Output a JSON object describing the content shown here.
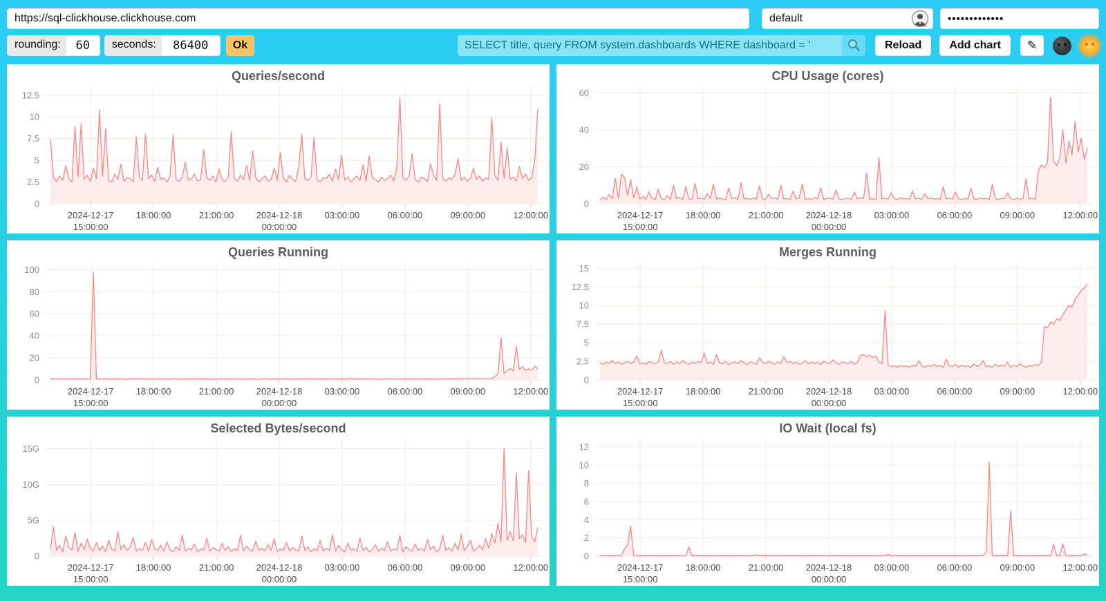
{
  "toolbar": {
    "url_value": "https://sql-clickhouse.clickhouse.com",
    "user_value": "default",
    "password_masked": "•••••••••••••",
    "rounding_label": "rounding:",
    "rounding_value": "60",
    "seconds_label": "seconds:",
    "seconds_value": "86400",
    "ok_label": "Ok",
    "query_value": "SELECT title, query FROM system.dashboards WHERE dashboard = '",
    "reload_label": "Reload",
    "add_chart_label": "Add chart",
    "edit_icon_glyph": "✎"
  },
  "theme": {
    "background_top": "#2BCDF5",
    "background_bottom": "#21D4C5",
    "accent_orange": "#F8C367",
    "line_color": "#F88888",
    "fill_color": "#FCECEC",
    "grid_color": "#ECEAE0",
    "ytick_color": "#8F8F8F",
    "xtick_color": "#4a4a4a",
    "title_color": "#5d5d5d"
  },
  "x_ticks": [
    {
      "frac": 0.0825,
      "line1": "2024-12-17",
      "line2": "15:00:00"
    },
    {
      "frac": 0.2115,
      "line1": "18:00:00"
    },
    {
      "frac": 0.3405,
      "line1": "21:00:00"
    },
    {
      "frac": 0.4695,
      "line1": "2024-12-18",
      "line2": "00:00:00"
    },
    {
      "frac": 0.5985,
      "line1": "03:00:00"
    },
    {
      "frac": 0.7275,
      "line1": "06:00:00"
    },
    {
      "frac": 0.8565,
      "line1": "09:00:00"
    },
    {
      "frac": 0.9855,
      "line1": "12:00:00"
    }
  ],
  "chart_data": [
    {
      "type": "area",
      "title": "Queries/second",
      "y_max": 13.2,
      "y_ticks": [
        {
          "value": 0,
          "label": "0"
        },
        {
          "value": 2.5,
          "label": "2.5"
        },
        {
          "value": 5,
          "label": "5"
        },
        {
          "value": 7.5,
          "label": "7.5"
        },
        {
          "value": 10,
          "label": "10"
        },
        {
          "value": 12.5,
          "label": "12.5"
        }
      ],
      "values": [
        7.4,
        3.0,
        2.6,
        3.2,
        2.7,
        4.4,
        2.9,
        2.5,
        8.9,
        3.1,
        9.2,
        2.8,
        3.3,
        2.6,
        4.1,
        2.9,
        10.8,
        3.2,
        8.6,
        2.7,
        2.5,
        3.4,
        2.8,
        4.6,
        2.6,
        3.0,
        2.9,
        2.5,
        7.7,
        3.1,
        2.7,
        8.0,
        2.9,
        3.3,
        2.6,
        4.2,
        2.8,
        3.0,
        2.5,
        3.2,
        7.9,
        2.8,
        2.6,
        3.1,
        4.8,
        2.7,
        2.9,
        3.4,
        2.6,
        2.8,
        6.2,
        3.0,
        2.7,
        3.2,
        2.5,
        4.0,
        2.8,
        2.6,
        3.1,
        8.3,
        2.9,
        2.6,
        3.3,
        2.8,
        4.4,
        2.7,
        6.1,
        3.0,
        2.5,
        2.9,
        3.2,
        2.6,
        2.8,
        4.1,
        2.7,
        5.9,
        3.0,
        2.5,
        3.3,
        2.8,
        2.6,
        4.3,
        8.0,
        2.9,
        2.7,
        3.1,
        7.6,
        2.8,
        2.5,
        3.0,
        2.9,
        3.4,
        2.6,
        4.0,
        2.8,
        5.6,
        2.7,
        3.1,
        2.5,
        2.9,
        3.2,
        2.7,
        4.5,
        2.6,
        5.5,
        3.0,
        2.8,
        2.5,
        3.1,
        2.7,
        2.9,
        3.3,
        2.6,
        4.2,
        12.2,
        3.0,
        2.7,
        3.2,
        5.8,
        2.8,
        2.5,
        3.1,
        2.9,
        2.6,
        4.6,
        3.3,
        2.7,
        11.5,
        2.9,
        2.6,
        3.0,
        2.8,
        3.4,
        5.2,
        2.7,
        3.1,
        2.6,
        2.9,
        4.1,
        2.8,
        3.2,
        2.6,
        3.0,
        2.8,
        9.9,
        3.3,
        2.7,
        7.1,
        2.9,
        6.4,
        2.8,
        3.1,
        2.6,
        4.3,
        2.9,
        3.4,
        2.7,
        3.0,
        5.0,
        10.9
      ]
    },
    {
      "type": "area",
      "title": "CPU Usage (cores)",
      "y_max": 62,
      "y_ticks": [
        {
          "value": 0,
          "label": "0"
        },
        {
          "value": 20,
          "label": "20"
        },
        {
          "value": 40,
          "label": "40"
        },
        {
          "value": 60,
          "label": "60"
        }
      ],
      "values": [
        2.0,
        3.5,
        2.2,
        5.0,
        2.8,
        13.8,
        3.0,
        16.0,
        14.2,
        4.5,
        13.0,
        3.2,
        9.0,
        2.6,
        4.0,
        2.4,
        6.5,
        3.0,
        2.2,
        8.0,
        2.8,
        2.2,
        4.5,
        2.5,
        10.2,
        2.8,
        3.5,
        2.2,
        9.5,
        2.6,
        2.3,
        11.0,
        2.7,
        3.2,
        2.4,
        5.5,
        2.8,
        10.5,
        2.5,
        3.0,
        2.6,
        2.2,
        8.5,
        2.8,
        3.4,
        2.3,
        11.5,
        2.6,
        2.9,
        2.4,
        3.1,
        2.5,
        9.8,
        2.7,
        2.3,
        5.2,
        2.8,
        3.3,
        2.4,
        10.0,
        2.6,
        2.9,
        2.3,
        6.8,
        2.7,
        3.1,
        10.8,
        2.5,
        2.8,
        2.3,
        3.4,
        2.6,
        8.8,
        2.4,
        2.9,
        3.2,
        2.5,
        7.5,
        2.7,
        2.3,
        2.8,
        3.0,
        2.4,
        6.2,
        2.6,
        3.3,
        2.9,
        16.5,
        2.5,
        2.8,
        2.4,
        25.0,
        2.7,
        3.1,
        2.5,
        6.0,
        2.8,
        2.3,
        3.2,
        2.6,
        2.9,
        2.4,
        7.0,
        2.6,
        3.0,
        2.3,
        5.5,
        2.7,
        3.2,
        2.5,
        2.8,
        2.3,
        9.2,
        2.6,
        3.1,
        2.4,
        6.5,
        2.8,
        2.2,
        3.0,
        2.5,
        8.5,
        2.7,
        2.3,
        3.2,
        2.6,
        2.9,
        2.4,
        10.5,
        2.7,
        2.4,
        3.0,
        2.6,
        6.0,
        2.8,
        2.3,
        3.1,
        2.5,
        2.7,
        13.5,
        2.6,
        3.0,
        2.4,
        18.0,
        21.0,
        19.5,
        22.5,
        57.5,
        23.0,
        20.5,
        25.0,
        40.0,
        22.0,
        34.0,
        26.5,
        44.5,
        28.0,
        35.5,
        24.0,
        30.0
      ]
    },
    {
      "type": "area",
      "title": "Queries Running",
      "y_max": 104,
      "y_ticks": [
        {
          "value": 0,
          "label": "0"
        },
        {
          "value": 20,
          "label": "20"
        },
        {
          "value": 40,
          "label": "40"
        },
        {
          "value": 60,
          "label": "60"
        },
        {
          "value": 80,
          "label": "80"
        },
        {
          "value": 100,
          "label": "100"
        }
      ],
      "values": [
        0.8,
        1.1,
        0.9,
        1.2,
        0.7,
        1.0,
        1.4,
        0.8,
        1.1,
        0.9,
        1.2,
        0.8,
        1.0,
        0.7,
        98.0,
        0.9,
        1.1,
        0.8,
        1.2,
        0.9,
        0.7,
        1.0,
        0.8,
        1.1,
        0.9,
        0.7,
        1.2,
        0.8,
        1.0,
        0.9,
        1.1,
        0.7,
        0.9,
        1.2,
        0.8,
        1.0,
        0.7,
        1.1,
        0.9,
        0.8,
        1.0,
        1.3,
        0.8,
        0.9,
        1.1,
        0.7,
        1.0,
        0.8,
        1.2,
        0.9,
        0.8,
        1.1,
        0.7,
        1.0,
        0.9,
        1.2,
        0.8,
        1.0,
        0.7,
        1.1,
        0.9,
        0.8,
        1.2,
        0.7,
        1.0,
        0.9,
        1.1,
        0.8,
        0.7,
        1.0,
        1.2,
        0.9,
        0.8,
        1.1,
        0.7,
        1.0,
        0.9,
        1.3,
        0.8,
        1.0,
        0.7,
        1.1,
        0.9,
        0.8,
        1.2,
        0.7,
        1.0,
        0.9,
        1.1,
        0.8,
        1.0,
        0.7,
        1.2,
        0.9,
        0.8,
        1.1,
        0.7,
        1.0,
        1.3,
        0.9,
        0.8,
        1.0,
        0.7,
        1.1,
        0.9,
        1.2,
        0.8,
        0.7,
        1.0,
        0.9,
        1.1,
        0.8,
        1.2,
        0.7,
        0.9,
        1.0,
        0.8,
        1.1,
        0.7,
        1.2,
        0.9,
        1.0,
        0.8,
        1.1,
        0.7,
        0.9,
        1.2,
        0.8,
        1.0,
        1.4,
        0.9,
        1.1,
        0.8,
        1.0,
        1.2,
        0.9,
        1.3,
        1.0,
        1.1,
        1.5,
        1.2,
        1.0,
        1.3,
        1.1,
        1.4,
        3.0,
        5.5,
        38.0,
        6.0,
        8.5,
        10.5,
        8.0,
        30.5,
        9.5,
        12.0,
        8.5,
        10.0,
        9.0,
        12.5,
        10.0
      ]
    },
    {
      "type": "area",
      "title": "Merges Running",
      "y_max": 15.4,
      "y_ticks": [
        {
          "value": 0,
          "label": "0"
        },
        {
          "value": 2.5,
          "label": "2.5"
        },
        {
          "value": 5,
          "label": "5"
        },
        {
          "value": 7.5,
          "label": "7.5"
        },
        {
          "value": 10,
          "label": "10"
        },
        {
          "value": 12.5,
          "label": "12.5"
        },
        {
          "value": 15,
          "label": "15"
        }
      ],
      "values": [
        2.3,
        2.1,
        2.4,
        2.2,
        2.6,
        2.2,
        2.4,
        2.1,
        2.3,
        2.5,
        2.2,
        2.4,
        3.2,
        2.2,
        2.3,
        2.1,
        2.5,
        2.3,
        2.2,
        2.4,
        4.0,
        2.3,
        2.2,
        2.5,
        2.1,
        2.4,
        2.2,
        2.6,
        2.3,
        2.1,
        2.4,
        2.2,
        2.5,
        2.3,
        3.6,
        2.2,
        2.4,
        2.1,
        3.4,
        2.3,
        2.2,
        2.5,
        2.1,
        2.3,
        2.4,
        2.2,
        2.6,
        2.3,
        2.1,
        2.4,
        2.3,
        2.1,
        3.0,
        2.4,
        2.2,
        2.5,
        2.3,
        2.1,
        2.4,
        2.2,
        3.1,
        2.3,
        2.5,
        2.2,
        2.4,
        2.1,
        2.3,
        2.6,
        2.2,
        2.4,
        2.2,
        2.4,
        2.1,
        2.5,
        2.3,
        2.2,
        2.7,
        2.3,
        2.1,
        2.4,
        2.3,
        2.2,
        2.5,
        2.1,
        2.4,
        3.3,
        3.4,
        3.1,
        3.3,
        3.0,
        3.2,
        2.4,
        2.2,
        9.3,
        2.0,
        1.8,
        1.9,
        1.7,
        2.0,
        1.8,
        1.9,
        1.7,
        2.0,
        1.8,
        2.6,
        1.9,
        1.7,
        2.0,
        1.8,
        2.1,
        1.8,
        2.0,
        1.7,
        2.8,
        1.9,
        1.8,
        2.1,
        1.7,
        2.0,
        1.8,
        1.9,
        1.7,
        2.2,
        1.8,
        2.0,
        2.6,
        1.8,
        1.9,
        1.7,
        2.1,
        1.8,
        2.0,
        1.9,
        2.4,
        1.7,
        2.0,
        1.8,
        2.2,
        1.9,
        1.7,
        2.0,
        1.8,
        2.1,
        1.9,
        2.4,
        7.2,
        7.0,
        7.8,
        7.5,
        8.2,
        8.0,
        8.8,
        9.4,
        10.0,
        9.8,
        10.8,
        11.4,
        12.0,
        12.4,
        12.8
      ]
    },
    {
      "type": "area",
      "title": "Selected Bytes/second",
      "y_max": 16,
      "y_ticks": [
        {
          "value": 0,
          "label": "0"
        },
        {
          "value": 5,
          "label": "5G"
        },
        {
          "value": 10,
          "label": "10G"
        },
        {
          "value": 15,
          "label": "15G"
        }
      ],
      "values": [
        1.0,
        4.1,
        0.8,
        1.5,
        0.6,
        2.8,
        1.2,
        0.9,
        3.3,
        0.7,
        1.8,
        0.9,
        2.4,
        1.1,
        0.7,
        1.9,
        0.8,
        1.4,
        0.6,
        2.2,
        1.0,
        0.7,
        3.4,
        0.9,
        1.6,
        0.8,
        1.2,
        2.6,
        0.7,
        1.1,
        0.8,
        1.9,
        0.7,
        2.3,
        1.0,
        0.8,
        1.5,
        0.7,
        2.0,
        0.9,
        0.6,
        1.3,
        0.8,
        2.9,
        0.7,
        1.1,
        0.9,
        1.7,
        0.6,
        1.0,
        0.8,
        2.5,
        0.7,
        1.2,
        0.9,
        0.7,
        1.8,
        0.8,
        1.3,
        0.6,
        1.0,
        0.8,
        2.9,
        0.7,
        1.4,
        0.9,
        0.7,
        2.1,
        0.8,
        1.1,
        0.7,
        1.6,
        0.8,
        2.4,
        0.6,
        1.0,
        0.8,
        1.9,
        0.7,
        1.2,
        0.9,
        0.7,
        2.8,
        0.8,
        1.3,
        0.6,
        1.0,
        0.8,
        2.2,
        0.7,
        1.1,
        0.8,
        3.0,
        0.7,
        1.5,
        0.9,
        0.6,
        1.8,
        0.8,
        1.0,
        0.7,
        2.5,
        0.8,
        1.2,
        0.6,
        0.9,
        1.6,
        0.7,
        1.1,
        0.8,
        2.0,
        0.7,
        1.0,
        0.8,
        2.9,
        0.6,
        1.3,
        0.9,
        0.7,
        1.7,
        0.8,
        1.1,
        0.7,
        2.3,
        0.9,
        1.4,
        0.6,
        1.0,
        2.9,
        0.8,
        1.2,
        0.7,
        1.8,
        0.9,
        3.0,
        0.8,
        1.3,
        2.2,
        0.7,
        1.0,
        1.5,
        0.9,
        2.4,
        1.1,
        3.1,
        1.8,
        4.6,
        2.0,
        15.0,
        2.2,
        3.4,
        2.1,
        11.6,
        2.4,
        3.0,
        1.9,
        11.9,
        2.6,
        2.0,
        4.0
      ]
    },
    {
      "type": "area",
      "title": "IO Wait (local fs)",
      "y_max": 12.6,
      "y_ticks": [
        {
          "value": 0,
          "label": "0"
        },
        {
          "value": 2,
          "label": "2"
        },
        {
          "value": 4,
          "label": "4"
        },
        {
          "value": 6,
          "label": "6"
        },
        {
          "value": 8,
          "label": "8"
        },
        {
          "value": 10,
          "label": "10"
        },
        {
          "value": 12,
          "label": "12"
        }
      ],
      "values": [
        0.05,
        0.04,
        0.06,
        0.04,
        0.05,
        0.04,
        0.06,
        0.05,
        0.8,
        1.2,
        3.3,
        0.06,
        0.05,
        0.04,
        0.06,
        0.05,
        0.04,
        0.05,
        0.06,
        0.04,
        0.05,
        0.04,
        0.06,
        0.05,
        0.04,
        0.05,
        0.06,
        0.04,
        0.05,
        1.0,
        0.04,
        0.05,
        0.06,
        0.04,
        0.05,
        0.04,
        0.06,
        0.05,
        0.04,
        0.05,
        0.06,
        0.04,
        0.05,
        0.04,
        0.06,
        0.05,
        0.04,
        0.06,
        0.05,
        0.04,
        0.05,
        0.15,
        0.04,
        0.05,
        0.06,
        0.04,
        0.05,
        0.04,
        0.06,
        0.05,
        0.04,
        0.05,
        0.06,
        0.04,
        0.05,
        0.06,
        0.04,
        0.05,
        0.04,
        0.06,
        0.05,
        0.04,
        0.06,
        0.05,
        0.04,
        0.05,
        0.06,
        0.04,
        0.05,
        0.04,
        0.06,
        0.05,
        0.04,
        0.05,
        0.04,
        0.06,
        0.05,
        0.04,
        0.06,
        0.05,
        0.04,
        0.05,
        0.06,
        0.04,
        0.2,
        0.05,
        0.04,
        0.06,
        0.05,
        0.04,
        0.05,
        0.04,
        0.06,
        0.05,
        0.04,
        0.05,
        0.04,
        0.06,
        0.05,
        0.04,
        0.06,
        0.04,
        0.05,
        0.06,
        0.04,
        0.05,
        0.06,
        0.04,
        0.05,
        0.04,
        0.05,
        0.06,
        0.04,
        0.05,
        0.04,
        0.06,
        0.45,
        10.3,
        0.06,
        0.05,
        0.04,
        0.05,
        0.06,
        0.04,
        5.0,
        0.05,
        0.04,
        0.06,
        0.05,
        0.04,
        0.05,
        0.04,
        0.06,
        0.05,
        0.04,
        0.05,
        0.06,
        0.04,
        1.3,
        0.05,
        0.04,
        1.35,
        0.05,
        0.04,
        0.06,
        0.05,
        0.04,
        0.06,
        0.25,
        0.1
      ]
    }
  ]
}
